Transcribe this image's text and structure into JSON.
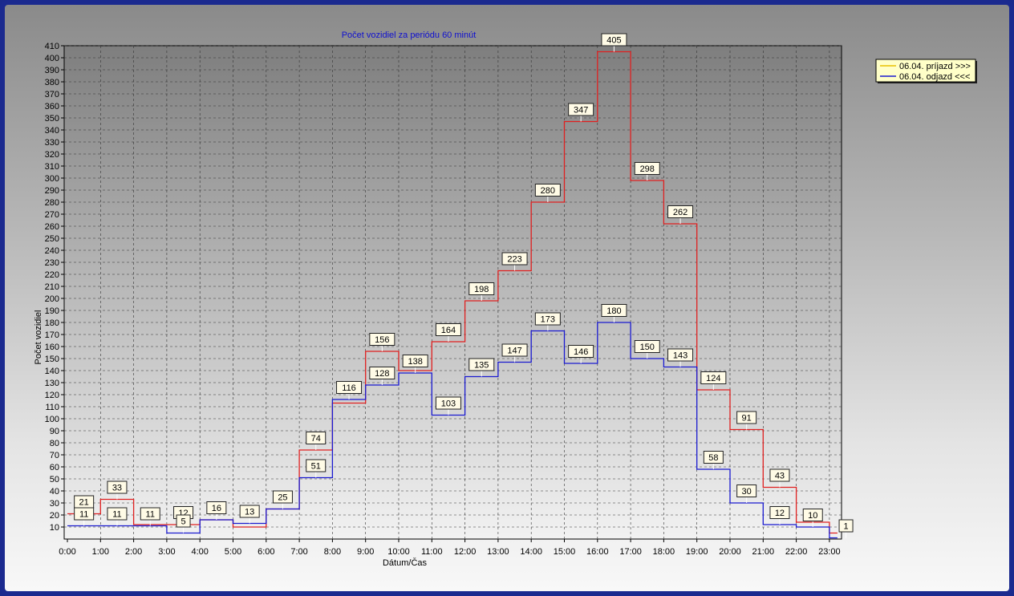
{
  "chart_data": {
    "type": "line",
    "title": "Počet vozidiel za periódu 60 minút",
    "xlabel": "Dátum/Čas",
    "ylabel": "Počet vozidiel",
    "categories": [
      "0:00",
      "1:00",
      "2:00",
      "3:00",
      "4:00",
      "5:00",
      "6:00",
      "7:00",
      "8:00",
      "9:00",
      "10:00",
      "11:00",
      "12:00",
      "13:00",
      "14:00",
      "15:00",
      "16:00",
      "17:00",
      "18:00",
      "19:00",
      "20:00",
      "21:00",
      "22:00",
      "23:00"
    ],
    "ylim": [
      0,
      410
    ],
    "yticks": [
      10,
      20,
      30,
      40,
      50,
      60,
      70,
      80,
      90,
      100,
      110,
      120,
      130,
      140,
      150,
      160,
      170,
      180,
      190,
      200,
      210,
      220,
      230,
      240,
      250,
      260,
      270,
      280,
      290,
      300,
      310,
      320,
      330,
      340,
      350,
      360,
      370,
      380,
      390,
      400,
      410
    ],
    "grid": true,
    "step": true,
    "legend_position": "top-right",
    "series": [
      {
        "name": "06.04.  príjazd >>>",
        "color": "#e02020",
        "values": [
          21,
          33,
          12,
          12,
          16,
          10,
          25,
          74,
          113,
          156,
          140,
          164,
          198,
          223,
          280,
          347,
          405,
          298,
          262,
          124,
          91,
          43,
          14,
          5
        ]
      },
      {
        "name": "06.04.  odjazd <<<",
        "color": "#1a1ad0",
        "values": [
          11,
          11,
          11,
          5,
          16,
          13,
          25,
          51,
          116,
          128,
          138,
          103,
          135,
          147,
          173,
          146,
          180,
          150,
          143,
          58,
          30,
          12,
          10,
          1
        ]
      }
    ],
    "labels": [
      {
        "x": 0,
        "text": "21",
        "series": 0
      },
      {
        "x": 0,
        "text": "11",
        "series": 1
      },
      {
        "x": 1,
        "text": "33",
        "series": 0
      },
      {
        "x": 1,
        "text": "11",
        "series": 1
      },
      {
        "x": 2,
        "text": "11",
        "series": 1
      },
      {
        "x": 3,
        "text": "12",
        "series": 0
      },
      {
        "x": 3,
        "text": "5",
        "series": 1
      },
      {
        "x": 4,
        "text": "16",
        "series": 1
      },
      {
        "x": 5,
        "text": "13",
        "series": 1
      },
      {
        "x": 6,
        "text": "25",
        "series": 0
      },
      {
        "x": 7,
        "text": "74",
        "series": 0
      },
      {
        "x": 7,
        "text": "51",
        "series": 1
      },
      {
        "x": 8,
        "text": "116",
        "series": 1
      },
      {
        "x": 9,
        "text": "156",
        "series": 0
      },
      {
        "x": 9,
        "text": "128",
        "series": 1
      },
      {
        "x": 10,
        "text": "138",
        "series": 1
      },
      {
        "x": 11,
        "text": "164",
        "series": 0
      },
      {
        "x": 11,
        "text": "103",
        "series": 1
      },
      {
        "x": 12,
        "text": "198",
        "series": 0
      },
      {
        "x": 12,
        "text": "135",
        "series": 1
      },
      {
        "x": 13,
        "text": "223",
        "series": 0
      },
      {
        "x": 13,
        "text": "147",
        "series": 1
      },
      {
        "x": 14,
        "text": "280",
        "series": 0
      },
      {
        "x": 14,
        "text": "173",
        "series": 1
      },
      {
        "x": 15,
        "text": "347",
        "series": 0
      },
      {
        "x": 15,
        "text": "146",
        "series": 1
      },
      {
        "x": 16,
        "text": "405",
        "series": 0
      },
      {
        "x": 16,
        "text": "180",
        "series": 1
      },
      {
        "x": 17,
        "text": "298",
        "series": 0
      },
      {
        "x": 17,
        "text": "150",
        "series": 1
      },
      {
        "x": 18,
        "text": "262",
        "series": 0
      },
      {
        "x": 18,
        "text": "143",
        "series": 1
      },
      {
        "x": 19,
        "text": "124",
        "series": 0
      },
      {
        "x": 19,
        "text": "58",
        "series": 1
      },
      {
        "x": 20,
        "text": "91",
        "series": 0
      },
      {
        "x": 20,
        "text": "30",
        "series": 1
      },
      {
        "x": 21,
        "text": "43",
        "series": 0
      },
      {
        "x": 21,
        "text": "12",
        "series": 1
      },
      {
        "x": 22,
        "text": "10",
        "series": 1
      },
      {
        "x": 23,
        "text": "1",
        "series": 1
      }
    ]
  }
}
